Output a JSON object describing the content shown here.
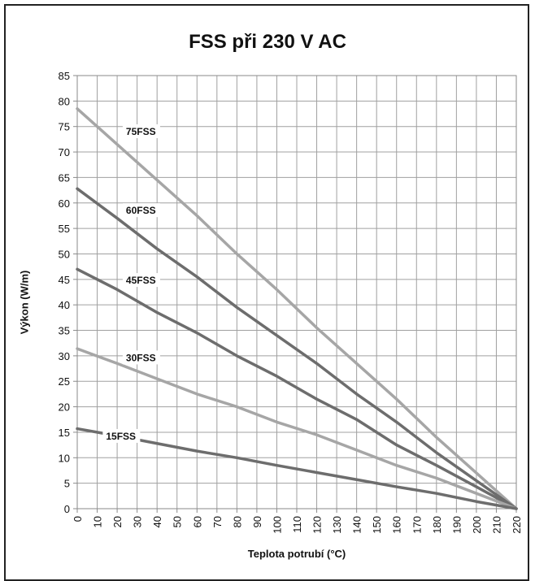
{
  "chart_data": {
    "type": "line",
    "title": "FSS při 230 V AC",
    "xlabel": "Teplota potrubí (°C)",
    "ylabel": "Výkon (W/m)",
    "xlim": [
      0,
      220
    ],
    "ylim": [
      0,
      85
    ],
    "x_ticks": [
      0,
      10,
      20,
      30,
      40,
      50,
      60,
      70,
      80,
      90,
      100,
      110,
      120,
      130,
      140,
      150,
      160,
      170,
      180,
      190,
      200,
      210,
      220
    ],
    "y_ticks": [
      0,
      5,
      10,
      15,
      20,
      25,
      30,
      35,
      40,
      45,
      50,
      55,
      60,
      65,
      70,
      75,
      80,
      85
    ],
    "grid": true,
    "x": [
      0,
      20,
      40,
      60,
      80,
      100,
      120,
      140,
      160,
      180,
      200,
      220
    ],
    "series": [
      {
        "name": "75FSS",
        "color": "#a6a6a6",
        "values": [
          78.5,
          71.5,
          64.5,
          57.5,
          50,
          43,
          35.5,
          28.5,
          21.5,
          14,
          7,
          0
        ]
      },
      {
        "name": "60FSS",
        "color": "#6d6d6d",
        "values": [
          62.8,
          57,
          51,
          45.5,
          39.5,
          34,
          28.5,
          22.5,
          17,
          11,
          5.5,
          0
        ]
      },
      {
        "name": "45FSS",
        "color": "#6d6d6d",
        "values": [
          47,
          43,
          38.5,
          34.5,
          30,
          26,
          21.5,
          17.5,
          12.5,
          8.5,
          4.3,
          0
        ]
      },
      {
        "name": "30FSS",
        "color": "#a6a6a6",
        "values": [
          31.4,
          28.5,
          25.5,
          22.5,
          20,
          17,
          14.5,
          11.5,
          8.5,
          6,
          3,
          0
        ]
      },
      {
        "name": "15FSS",
        "color": "#6d6d6d",
        "values": [
          15.7,
          14.3,
          12.8,
          11.3,
          10,
          8.5,
          7.1,
          5.7,
          4.3,
          3,
          1.4,
          0
        ]
      }
    ],
    "label_x": [
      35,
      35,
      35,
      35,
      25
    ],
    "label_y": [
      74,
      58.5,
      44.8,
      29.6,
      14.2
    ]
  }
}
